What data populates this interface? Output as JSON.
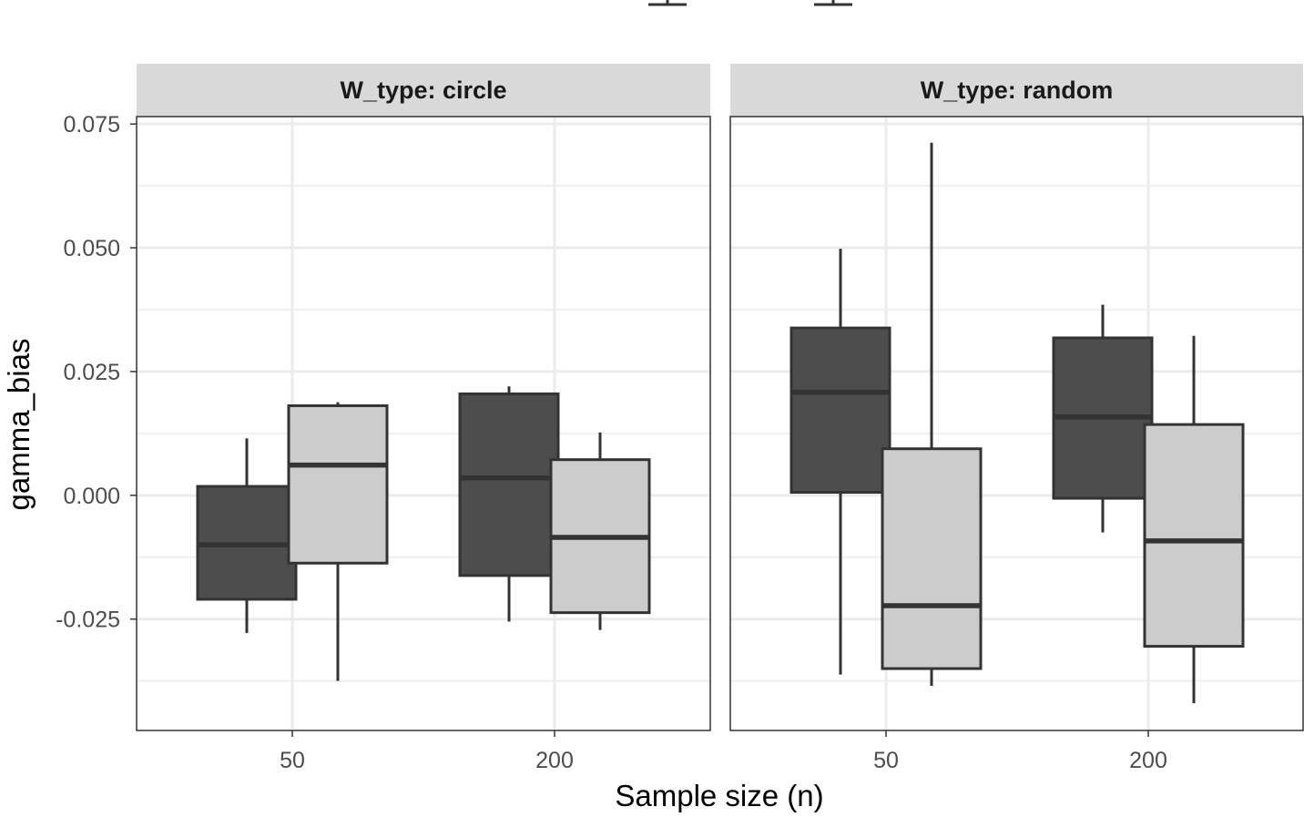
{
  "chart_data": {
    "type": "box",
    "xlabel": "Sample size (n)",
    "ylabel": "gamma_bias",
    "categories": [
      "50",
      "200"
    ],
    "y_ticks": [
      "-0.025",
      "0.000",
      "0.025",
      "0.050",
      "0.075"
    ],
    "y_tick_values": [
      -0.025,
      0.0,
      0.025,
      0.05,
      0.075
    ],
    "ylim": [
      -0.0475,
      0.0765
    ],
    "grid": true,
    "legend_position": "top",
    "colors": {
      "dark_fill": "#4d4d4d",
      "light_fill": "#cccccc",
      "box_stroke": "#333333",
      "strip_fill": "#d9d9d9",
      "grid_major": "#ebebeb"
    },
    "panels": [
      {
        "strip_label": "W_type: circle",
        "boxes": [
          {
            "category": "50",
            "fill": "dark",
            "whisker_low": -0.0278,
            "q1": -0.021,
            "median": -0.01,
            "q3": 0.0018,
            "whisker_high": 0.0115
          },
          {
            "category": "50",
            "fill": "light",
            "whisker_low": -0.0375,
            "q1": -0.0137,
            "median": 0.0061,
            "q3": 0.0181,
            "whisker_high": 0.0188
          },
          {
            "category": "200",
            "fill": "dark",
            "whisker_low": -0.0255,
            "q1": -0.0162,
            "median": 0.0035,
            "q3": 0.0205,
            "whisker_high": 0.022
          },
          {
            "category": "200",
            "fill": "light",
            "whisker_low": -0.0272,
            "q1": -0.0237,
            "median": -0.0085,
            "q3": 0.0072,
            "whisker_high": 0.0127
          }
        ]
      },
      {
        "strip_label": "W_type: random",
        "boxes": [
          {
            "category": "50",
            "fill": "dark",
            "whisker_low": -0.0362,
            "q1": 0.0006,
            "median": 0.0208,
            "q3": 0.0338,
            "whisker_high": 0.0498
          },
          {
            "category": "50",
            "fill": "light",
            "whisker_low": -0.0385,
            "q1": -0.035,
            "median": -0.0223,
            "q3": 0.0094,
            "whisker_high": 0.0712
          },
          {
            "category": "200",
            "fill": "dark",
            "whisker_low": -0.0075,
            "q1": -0.0006,
            "median": 0.0158,
            "q3": 0.0318,
            "whisker_high": 0.0385
          },
          {
            "category": "200",
            "fill": "light",
            "whisker_low": -0.042,
            "q1": -0.0305,
            "median": -0.0092,
            "q3": 0.0143,
            "whisker_high": 0.0322
          }
        ]
      }
    ]
  }
}
